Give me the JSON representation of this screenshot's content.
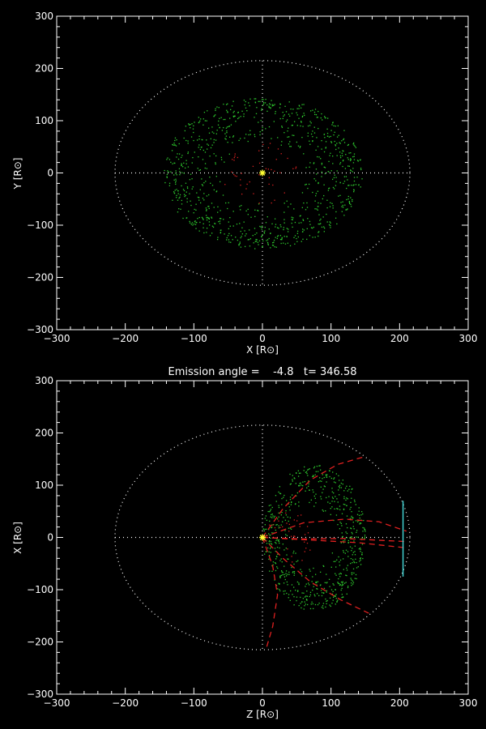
{
  "chart_data": [
    {
      "type": "scatter",
      "title": "",
      "xlabel": "X [R⊙]",
      "ylabel": "Y [R⊙]",
      "xlim": [
        -300,
        300
      ],
      "ylim": [
        -300,
        300
      ],
      "xticks": [
        "−300",
        "−200",
        "−100",
        "0",
        "100",
        "200",
        "300"
      ],
      "yticks": [
        "−300",
        "−200",
        "−100",
        "0",
        "100",
        "200",
        "300"
      ],
      "reference_circle_radius": 215,
      "green_cloud": {
        "rx": 145,
        "ry": 145,
        "count": 900,
        "color": "#2ecc2e"
      },
      "red_cloud": {
        "rx": 60,
        "ry": 60,
        "count": 45,
        "color": "#d82020"
      },
      "sun_marker": {
        "x": 0,
        "y": 0,
        "color": "#ffff33"
      },
      "colors": {
        "axis": "#ffffff",
        "guide": "#ffffff"
      }
    },
    {
      "type": "scatter",
      "title": "Emission angle =    -4.8   t= 346.58",
      "xlabel": "Z [R⊙]",
      "ylabel": "X [R⊙]",
      "xlim": [
        -300,
        300
      ],
      "ylim": [
        -300,
        300
      ],
      "xticks": [
        "−300",
        "−200",
        "−100",
        "0",
        "100",
        "200",
        "300"
      ],
      "yticks": [
        "−300",
        "−200",
        "−100",
        "0",
        "100",
        "200",
        "300"
      ],
      "reference_circle_radius": 215,
      "green_cloud": {
        "cx": 75,
        "cy": 0,
        "rx": 75,
        "ry": 140,
        "count": 650,
        "color": "#2ecc2e"
      },
      "red_cloud": {
        "cx": 40,
        "cy": 0,
        "rx": 35,
        "ry": 50,
        "count": 30,
        "color": "#d82020"
      },
      "sun_marker": {
        "x": 0,
        "y": 0,
        "color": "#ffff33"
      },
      "dashed_curves": [
        {
          "color": "#e02020",
          "points": [
            [
              0,
              0
            ],
            [
              30,
              55
            ],
            [
              70,
              110
            ],
            [
              110,
              140
            ],
            [
              150,
              155
            ]
          ]
        },
        {
          "color": "#e02020",
          "points": [
            [
              0,
              0
            ],
            [
              30,
              -40
            ],
            [
              70,
              -85
            ],
            [
              115,
              -120
            ],
            [
              155,
              -145
            ]
          ]
        },
        {
          "color": "#e02020",
          "points": [
            [
              0,
              0
            ],
            [
              15,
              -55
            ],
            [
              22,
              -110
            ],
            [
              15,
              -170
            ],
            [
              5,
              -215
            ]
          ]
        },
        {
          "color": "#e02020",
          "points": [
            [
              0,
              0
            ],
            [
              60,
              28
            ],
            [
              120,
              35
            ],
            [
              170,
              30
            ],
            [
              210,
              12
            ]
          ]
        },
        {
          "color": "#e02020",
          "points": [
            [
              0,
              0
            ],
            [
              60,
              -3
            ],
            [
              120,
              -2
            ],
            [
              210,
              -8
            ]
          ]
        },
        {
          "color": "#e02020",
          "points": [
            [
              0,
              0
            ],
            [
              70,
              -5
            ],
            [
              140,
              -10
            ],
            [
              210,
              -20
            ]
          ]
        }
      ],
      "cyan_line": {
        "z": 205,
        "x1": -75,
        "x2": 70,
        "color": "#40d0d0"
      },
      "colors": {
        "axis": "#ffffff",
        "guide": "#ffffff"
      }
    }
  ]
}
